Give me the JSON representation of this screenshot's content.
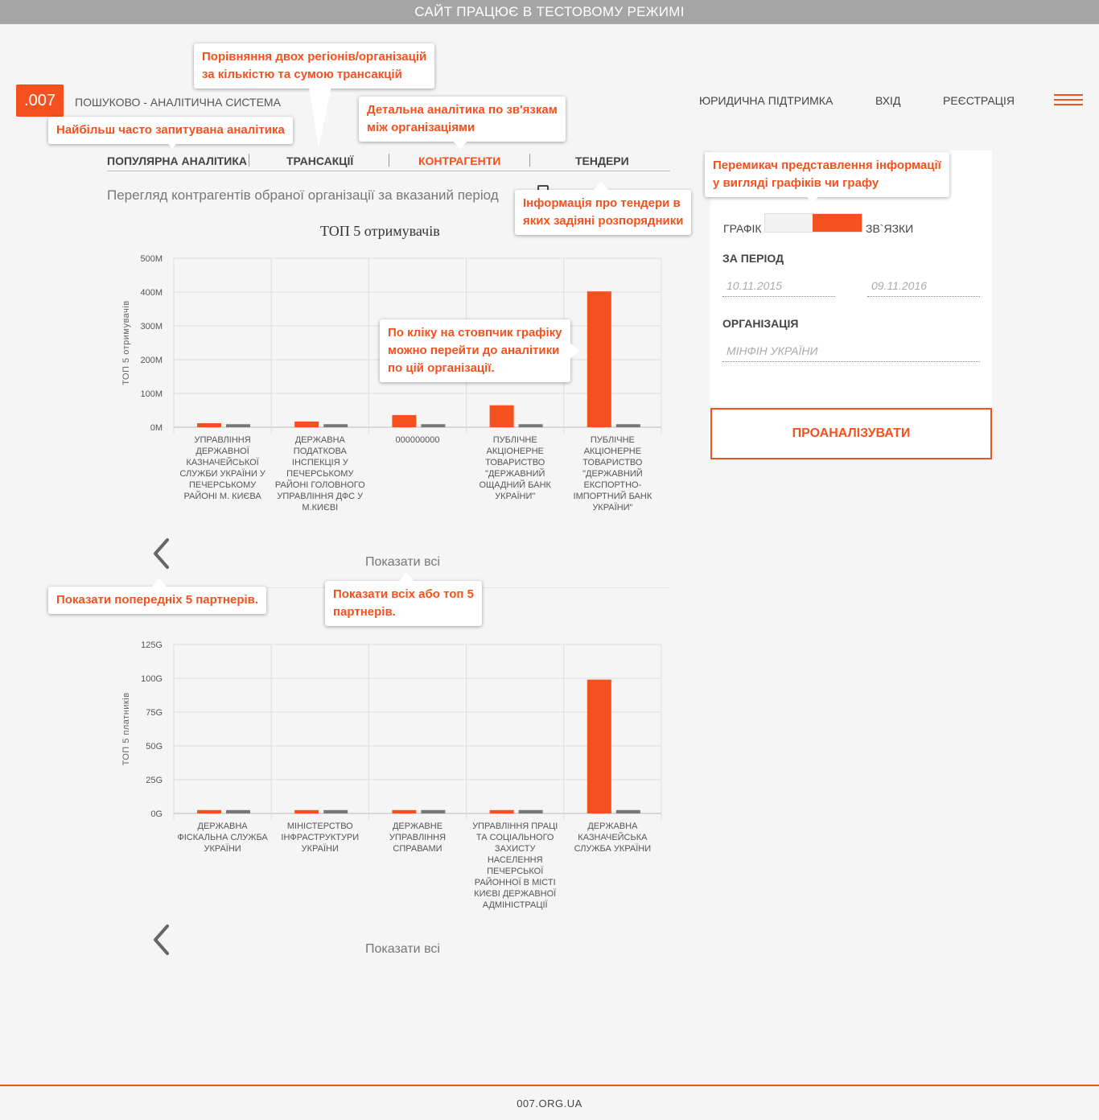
{
  "banner": "САЙТ ПРАЦЮЄ В ТЕСТОВОМУ РЕЖИМІ",
  "logo": ".007",
  "site_name": "ПОШУКОВО - АНАЛІТИЧНА СИСТЕМА",
  "topnav": {
    "legal": "ЮРИДИЧНА ПІДТРИМКА",
    "login": "ВХІД",
    "register": "РЕЄСТРАЦІЯ"
  },
  "tabs": {
    "popular": "ПОПУЛЯРНА АНАЛІТИКА",
    "transactions": "ТРАНСАКЦІЇ",
    "counterparties": "КОНТРАГЕНТИ",
    "tenders": "ТЕНДЕРИ"
  },
  "subtitle": "Перегляд контрагентів обраної організації за вказаний період",
  "panel": {
    "toggle_left": "ГРАФІК",
    "toggle_right": "ЗВ`ЯЗКИ",
    "period_label": "ЗА ПЕРІОД",
    "date_from": "10.11.2015",
    "date_to": "09.11.2016",
    "org_label": "ОРГАНІЗАЦІЯ",
    "org_value": "МІНФІН УКРАЇНИ",
    "analyze": "ПРОАНАЛІЗУВАТИ"
  },
  "chart_data": [
    {
      "type": "bar",
      "title": "ТОП 5 отримувачів",
      "ylabel": "ТОП 5 отримувачів",
      "ylim": [
        0,
        500
      ],
      "yticks": [
        "0M",
        "100M",
        "200M",
        "300M",
        "400M",
        "500M"
      ],
      "categories": [
        "Управління Державної Казначейської служби України у Печерському районі м. Києва",
        "Державна податкова інспекція у Печерському районі Головного управління ДФС у м.Києві",
        "000000000",
        "Публічне акціонерне товариство \"Державний ощадний банк України\"",
        "Публічне акціонерне товариство \"Державний експортно-імпортний банк України\""
      ],
      "series": [
        {
          "color": "#f4511e",
          "values": [
            12,
            17,
            36,
            65,
            402
          ]
        },
        {
          "color": "#777777",
          "values": [
            9,
            9,
            9,
            9,
            9
          ]
        }
      ]
    },
    {
      "type": "bar",
      "title": "",
      "ylabel": "ТОП 5 платників",
      "ylim": [
        0,
        125
      ],
      "yticks": [
        "0G",
        "25G",
        "50G",
        "75G",
        "100G",
        "125G"
      ],
      "categories": [
        "Державна фіскальна служба України",
        "Міністерство інфраструктури України",
        "Державне управління справами",
        "Управління праці та соціального захисту населення Печерської районної в місті Києві державної адміністрації",
        "Державна казначейська служба України"
      ],
      "series": [
        {
          "color": "#f4511e",
          "values": [
            2.5,
            2.5,
            2.5,
            2.5,
            99
          ]
        },
        {
          "color": "#777777",
          "values": [
            2.5,
            2.5,
            2.5,
            2.5,
            2.5
          ]
        }
      ]
    }
  ],
  "show_all": "Показати всі",
  "tooltips": {
    "compare": "Порівняння двох регіонів/організацій\nза кількістю та сумою трансакцій",
    "popular": "Найбільш часто запитувана аналітика",
    "relations": "Детальна аналітика по зв'язкам\nміж організаціями",
    "toggle": "Перемикач представлення інформації\nу вигляді графіків чи графу",
    "tenders": "Інформація про тендери в\nяких задіяні розпорядники",
    "bar_click": "По кліку на стовпчик графіку\nможно перейти до аналітики\nпо цій організації.",
    "prev": "Показати попередніх 5 партнерів.",
    "show_all": "Показати всіх або топ 5\nпартнерів."
  },
  "footer": "007.ORG.UA",
  "colors": {
    "accent": "#f4511e",
    "banner": "#a5a5a5"
  }
}
